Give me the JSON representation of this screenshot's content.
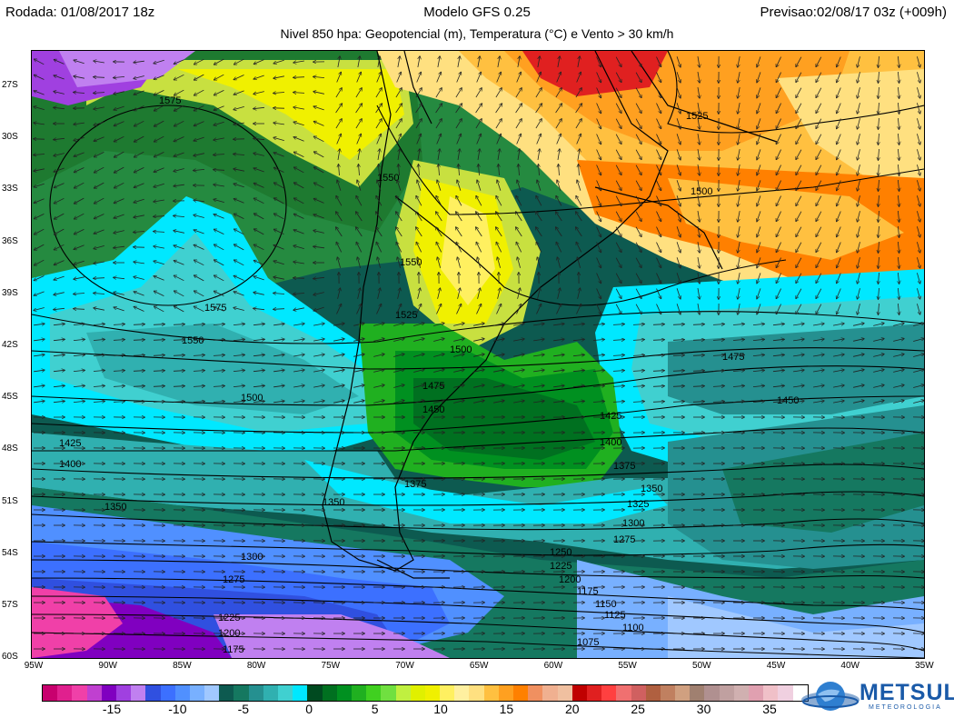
{
  "header": {
    "run": "Rodada: 01/08/2017 18z",
    "model": "Modelo GFS 0.25",
    "forecast": "Previsao:02/08/17 03z (+009h)",
    "subtitle": "Nivel 850 hpa: Geopotencial (m), Temperatura (°C) e Vento > 30 km/h"
  },
  "map": {
    "lat_labels": [
      "27S",
      "30S",
      "33S",
      "36S",
      "39S",
      "42S",
      "45S",
      "48S",
      "51S",
      "54S",
      "57S",
      "60S"
    ],
    "lon_labels": [
      "95W",
      "90W",
      "85W",
      "80W",
      "75W",
      "70W",
      "65W",
      "60W",
      "55W",
      "50W",
      "45W",
      "40W",
      "35W"
    ],
    "contour_labels": [
      {
        "text": "1575"
      },
      {
        "text": "1550"
      },
      {
        "text": "1525"
      },
      {
        "text": "1500"
      },
      {
        "text": "1575"
      },
      {
        "text": "1550"
      },
      {
        "text": "1550"
      },
      {
        "text": "1525"
      },
      {
        "text": "1500"
      },
      {
        "text": "1500"
      },
      {
        "text": "1475"
      },
      {
        "text": "1450"
      },
      {
        "text": "1425"
      },
      {
        "text": "1400"
      },
      {
        "text": "1425"
      },
      {
        "text": "1450"
      },
      {
        "text": "1475"
      },
      {
        "text": "1400"
      },
      {
        "text": "1375"
      },
      {
        "text": "1375"
      },
      {
        "text": "1350"
      },
      {
        "text": "1350"
      },
      {
        "text": "1325"
      },
      {
        "text": "1300"
      },
      {
        "text": "1275"
      },
      {
        "text": "1300"
      },
      {
        "text": "1275"
      },
      {
        "text": "1250"
      },
      {
        "text": "1225"
      },
      {
        "text": "1200"
      },
      {
        "text": "1175"
      },
      {
        "text": "1150"
      },
      {
        "text": "1125"
      },
      {
        "text": "1100"
      },
      {
        "text": "1075"
      },
      {
        "text": "1225"
      },
      {
        "text": "1200"
      },
      {
        "text": "1175"
      },
      {
        "text": "1350"
      }
    ]
  },
  "colorbar": {
    "labels": [
      "-15",
      "-10",
      "-5",
      "0",
      "5",
      "10",
      "15",
      "20",
      "25",
      "30",
      "35"
    ],
    "colors": [
      "#c8006e",
      "#e0208e",
      "#f040a8",
      "#c040d0",
      "#8000c0",
      "#a040e0",
      "#c080f0",
      "#3050e0",
      "#3c70ff",
      "#5090ff",
      "#78b0ff",
      "#a0c8ff",
      "#0d5a50",
      "#157860",
      "#259090",
      "#30b0b0",
      "#40d0d0",
      "#00e8ff",
      "#004a20",
      "#007020",
      "#009020",
      "#20b020",
      "#40d020",
      "#70e040",
      "#c0f040",
      "#e0f000",
      "#f0f000",
      "#fff060",
      "#fff0a0",
      "#ffe080",
      "#ffc040",
      "#ffa020",
      "#ff8000",
      "#f09060",
      "#f0b090",
      "#f0c0a0",
      "#c00000",
      "#e02020",
      "#ff4040",
      "#f07070",
      "#d06060",
      "#b06040",
      "#c08060",
      "#d0a080",
      "#a08070",
      "#b09090",
      "#c0a0a0",
      "#d0b0b0",
      "#e0a0b0",
      "#f0c0c8",
      "#f0d0e0",
      "#ffffff"
    ]
  },
  "logo": {
    "name": "METSUL",
    "tagline": "METEOROLOGIA"
  }
}
